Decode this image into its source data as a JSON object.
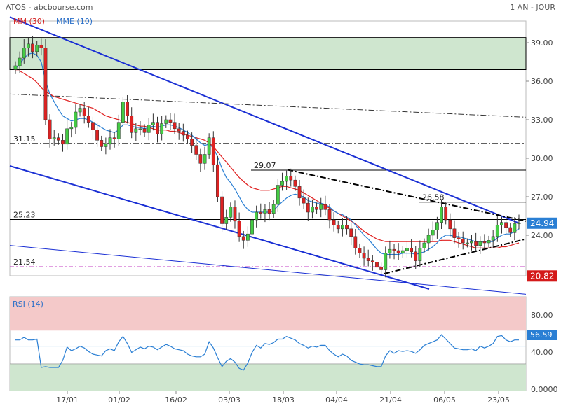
{
  "header": {
    "title": "ATOS - abcbourse.com",
    "period": "1 AN - JOUR",
    "legend_mm": "MM (30)",
    "legend_mme": "MME (10)"
  },
  "rsi": {
    "label": "RSI (14)",
    "value_label": "56.59",
    "ticks": [
      "80.00",
      "40.00",
      "0.0000"
    ]
  },
  "colors": {
    "up": "#44cc44",
    "down": "#dd2222",
    "mm": "#e02020",
    "mme": "#2a7fd4",
    "channel": "#1a2fd4",
    "rsi": "#2a7fd4",
    "zone_green": "#cfe6cf",
    "zone_red": "#f4c9c9"
  },
  "chart_data": {
    "type": "candlestick",
    "title": "ATOS - abcbourse.com",
    "period": "1 AN - JOUR",
    "x_ticks": [
      "17/01",
      "01/02",
      "16/02",
      "03/03",
      "18/03",
      "04/04",
      "21/04",
      "06/05",
      "23/05"
    ],
    "y_ticks": [
      "39.00",
      "36.00",
      "33.00",
      "30.00",
      "27.00",
      "24.00"
    ],
    "ylim": [
      19.8,
      40.4
    ],
    "levels": [
      {
        "label": "31.15",
        "value": 31.15
      },
      {
        "label": "29.07",
        "value": 29.07
      },
      {
        "label": "26.58",
        "value": 26.58
      },
      {
        "label": "25.23",
        "value": 25.23
      },
      {
        "label": "21.54",
        "value": 21.54
      }
    ],
    "green_zone": [
      36.9,
      39.4
    ],
    "last_price_label": "24.94",
    "second_price_label": "20.82",
    "series": [
      {
        "name": "MM (30)"
      },
      {
        "name": "MME (10)"
      }
    ],
    "close": [
      37.2,
      37.8,
      38.6,
      38.9,
      38.3,
      38.8,
      38.6,
      33.0,
      31.5,
      31.6,
      31.4,
      31.1,
      32.3,
      32.4,
      33.6,
      33.9,
      33.3,
      32.8,
      32.2,
      31.4,
      30.9,
      31.1,
      31.6,
      31.5,
      32.8,
      34.4,
      33.3,
      32.0,
      32.3,
      32.3,
      32.0,
      32.6,
      32.8,
      31.9,
      32.7,
      33.0,
      32.8,
      32.3,
      32.1,
      31.8,
      31.5,
      31.0,
      30.3,
      29.6,
      30.3,
      31.6,
      29.5,
      27.0,
      24.9,
      25.4,
      26.2,
      25.1,
      23.9,
      23.6,
      24.1,
      25.2,
      25.8,
      25.7,
      26.0,
      25.7,
      26.4,
      27.9,
      28.2,
      28.6,
      28.3,
      27.8,
      26.9,
      26.5,
      25.8,
      26.2,
      26.0,
      26.4,
      26.0,
      25.2,
      24.8,
      24.5,
      24.8,
      24.5,
      23.9,
      23.0,
      22.6,
      22.2,
      22.0,
      21.9,
      21.5,
      21.3,
      22.6,
      22.9,
      22.8,
      22.6,
      22.8,
      23.0,
      22.7,
      22.0,
      23.0,
      23.4,
      24.0,
      24.4,
      25.0,
      26.2,
      25.2,
      24.5,
      23.8,
      23.7,
      23.4,
      23.4,
      23.5,
      23.2,
      23.5,
      23.4,
      23.6,
      23.9,
      24.8,
      25.0,
      24.6,
      24.2,
      24.9,
      24.94
    ],
    "mm30": [
      36.8,
      36.8,
      36.6,
      36.4,
      36.2,
      35.9,
      35.5,
      35.2,
      35.0,
      34.8,
      34.7,
      34.6,
      34.5,
      34.4,
      34.3,
      34.2,
      34.1,
      34.0,
      33.9,
      33.7,
      33.5,
      33.3,
      33.2,
      33.1,
      33.0,
      32.9,
      32.8,
      32.7,
      32.6,
      32.5,
      32.5,
      32.4,
      32.3,
      32.2,
      32.2,
      32.2,
      32.1,
      32.1,
      32.0,
      31.9,
      31.8,
      31.7,
      31.6,
      31.5,
      31.4,
      31.2,
      30.9,
      30.5,
      30.1,
      29.7,
      29.3,
      28.9,
      28.5,
      28.2,
      27.9,
      27.7,
      27.6,
      27.5,
      27.5,
      27.5,
      27.6,
      27.7,
      27.8,
      27.8,
      27.7,
      27.6,
      27.5,
      27.3,
      27.1,
      26.9,
      26.7,
      26.5,
      26.3,
      26.1,
      25.9,
      25.7,
      25.5,
      25.3,
      25.1,
      24.9,
      24.6,
      24.3,
      24.1,
      23.9,
      23.7,
      23.6,
      23.5,
      23.5,
      23.5,
      23.5,
      23.5,
      23.5,
      23.5,
      23.5,
      23.5,
      23.5,
      23.5,
      23.5,
      23.5,
      23.6,
      23.6,
      23.6,
      23.5,
      23.4,
      23.3,
      23.2,
      23.1,
      23.0,
      23.0,
      23.0,
      23.0,
      23.0,
      23.0,
      23.1,
      23.1,
      23.2,
      23.3,
      23.4
    ],
    "mme10": [
      37.0,
      37.3,
      37.8,
      38.1,
      38.2,
      38.0,
      37.5,
      36.0,
      35.0,
      34.4,
      33.8,
      33.3,
      33.1,
      32.9,
      33.0,
      33.1,
      33.1,
      33.0,
      32.8,
      32.6,
      32.4,
      32.2,
      32.1,
      32.0,
      32.2,
      32.6,
      32.6,
      32.5,
      32.4,
      32.4,
      32.3,
      32.4,
      32.5,
      32.4,
      32.5,
      32.6,
      32.6,
      32.5,
      32.4,
      32.2,
      32.0,
      31.8,
      31.5,
      31.2,
      31.0,
      31.1,
      30.8,
      30.1,
      29.2,
      28.5,
      28.1,
      27.6,
      27.0,
      26.4,
      26.0,
      25.8,
      25.8,
      25.8,
      25.8,
      25.8,
      25.9,
      26.3,
      26.6,
      26.9,
      27.1,
      27.2,
      27.1,
      27.0,
      26.7,
      26.6,
      26.5,
      26.5,
      26.4,
      26.2,
      25.9,
      25.7,
      25.6,
      25.4,
      25.2,
      24.8,
      24.4,
      24.0,
      23.7,
      23.3,
      22.9,
      22.6,
      22.5,
      22.5,
      22.5,
      22.5,
      22.6,
      22.6,
      22.6,
      22.5,
      22.6,
      22.7,
      22.9,
      23.1,
      23.4,
      23.8,
      24.0,
      24.0,
      23.9,
      23.9,
      23.8,
      23.7,
      23.6,
      23.5,
      23.5,
      23.5,
      23.5,
      23.5,
      23.8,
      24.0,
      24.1,
      24.1,
      24.3,
      24.5
    ],
    "rsi": [
      57,
      57,
      60,
      57,
      57,
      58,
      26,
      27,
      26,
      26,
      26,
      34,
      49,
      45,
      47,
      50,
      48,
      44,
      41,
      40,
      39,
      45,
      47,
      45,
      55,
      61,
      53,
      43,
      46,
      49,
      47,
      50,
      49,
      46,
      49,
      52,
      50,
      47,
      46,
      45,
      41,
      39,
      38,
      38,
      41,
      55,
      48,
      37,
      27,
      33,
      36,
      32,
      25,
      23,
      31,
      43,
      51,
      48,
      53,
      52,
      54,
      58,
      58,
      61,
      59,
      57,
      53,
      51,
      48,
      50,
      49,
      51,
      51,
      45,
      41,
      38,
      41,
      39,
      34,
      32,
      30,
      29,
      29,
      28,
      27,
      27,
      39,
      45,
      42,
      45,
      44,
      45,
      44,
      42,
      46,
      51,
      53,
      55,
      57,
      63,
      58,
      53,
      48,
      47,
      46,
      46,
      47,
      45,
      50,
      48,
      50,
      53,
      61,
      62,
      57,
      55,
      57,
      57
    ]
  }
}
